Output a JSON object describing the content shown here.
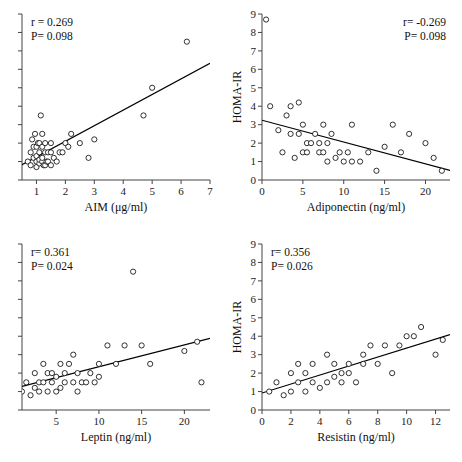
{
  "chart_data": [
    {
      "type": "scatter",
      "xlabel": "AIM (μg/ml)",
      "annotations": [
        "r = 0.269",
        "P= 0.098"
      ],
      "xlim": [
        0.5,
        7
      ],
      "ylim": [
        0,
        9
      ],
      "xticks": [
        1,
        2,
        3,
        4,
        5,
        6,
        7
      ],
      "yticks": [
        0,
        1,
        2,
        3,
        4,
        5,
        6,
        7,
        8,
        9
      ],
      "tick_labels": "x",
      "grid": false,
      "marker": "circle-open",
      "color": "#000000",
      "x": [
        0.7,
        0.8,
        0.8,
        0.85,
        0.9,
        0.9,
        0.95,
        1.0,
        1.0,
        1.0,
        1.0,
        1.05,
        1.1,
        1.1,
        1.1,
        1.1,
        1.15,
        1.2,
        1.2,
        1.2,
        1.2,
        1.25,
        1.3,
        1.3,
        1.3,
        1.35,
        1.4,
        1.4,
        1.5,
        1.5,
        1.5,
        1.6,
        1.7,
        1.8,
        1.9,
        2.0,
        2.1,
        2.2,
        2.5,
        2.8,
        3.0,
        4.7,
        5.0,
        6.2
      ],
      "values": [
        1.0,
        1.5,
        0.8,
        2.2,
        1.2,
        1.8,
        2.5,
        0.7,
        1.0,
        1.3,
        1.8,
        2.0,
        0.9,
        1.1,
        1.5,
        2.0,
        3.5,
        1.0,
        1.2,
        1.8,
        2.5,
        0.8,
        0.8,
        1.5,
        2.0,
        1.0,
        1.0,
        1.5,
        0.8,
        1.5,
        2.0,
        1.2,
        1.0,
        1.5,
        1.5,
        2.0,
        1.8,
        2.5,
        2.0,
        1.2,
        2.2,
        3.5,
        5.0,
        7.5
      ],
      "trend": {
        "slope": 0.846072,
        "intercept": 0.401708
      }
    },
    {
      "type": "scatter",
      "xlabel": "Adiponectin (ng/ml)",
      "ylabel": "HOMA-IR",
      "annotations": [
        "r= -0.269",
        "P= 0.098"
      ],
      "xlim": [
        0,
        23
      ],
      "ylim": [
        0,
        9
      ],
      "xticks": [
        0,
        5,
        10,
        15,
        20
      ],
      "yticks": [
        0,
        1,
        2,
        3,
        4,
        5,
        6,
        7,
        8,
        9
      ],
      "grid": false,
      "marker": "circle-open",
      "color": "#000000",
      "x": [
        0.5,
        1.0,
        2.0,
        2.5,
        3.0,
        3.5,
        3.5,
        4.0,
        4.5,
        4.5,
        5.0,
        5.0,
        5.5,
        5.5,
        6.0,
        6.5,
        7.0,
        7.0,
        7.5,
        7.5,
        8.0,
        8.0,
        8.5,
        9.0,
        9.5,
        10.0,
        10.5,
        11.0,
        11.0,
        12.0,
        13.0,
        14.0,
        15.0,
        16.0,
        17.0,
        18.0,
        20.0,
        21.0,
        22.0
      ],
      "values": [
        8.7,
        4.0,
        2.7,
        1.5,
        3.5,
        4.0,
        2.5,
        1.2,
        2.5,
        4.2,
        1.5,
        3.0,
        2.0,
        1.5,
        2.0,
        2.5,
        1.5,
        2.0,
        1.5,
        3.0,
        1.0,
        2.0,
        2.5,
        1.2,
        1.5,
        1.0,
        1.5,
        1.0,
        3.0,
        1.0,
        1.5,
        0.5,
        1.8,
        3.0,
        1.5,
        2.5,
        2.0,
        1.2,
        0.5
      ],
      "trend": {
        "slope": -0.118398,
        "intercept": 3.239675
      }
    },
    {
      "type": "scatter",
      "xlabel": "Leptin (ng/ml)",
      "annotations": [
        "r= 0.361",
        "P= 0.024"
      ],
      "xlim": [
        1,
        23
      ],
      "ylim": [
        0,
        9
      ],
      "xticks": [
        5,
        10,
        15,
        20
      ],
      "yticks": [
        0,
        1,
        2,
        3,
        4,
        5,
        6,
        7,
        8,
        9
      ],
      "tick_labels": "x",
      "grid": false,
      "marker": "circle-open",
      "color": "#000000",
      "x": [
        1.0,
        1.5,
        2.0,
        2.5,
        2.5,
        3.0,
        3.0,
        3.5,
        3.5,
        4.0,
        4.0,
        4.5,
        4.5,
        5.0,
        5.0,
        5.5,
        5.5,
        6.0,
        6.0,
        6.5,
        7.0,
        7.0,
        7.5,
        7.5,
        8.0,
        8.5,
        9.0,
        9.5,
        10.0,
        10.0,
        11.0,
        12.0,
        13.0,
        14.0,
        15.0,
        16.0,
        20.0,
        21.5,
        22.0
      ],
      "values": [
        1.0,
        1.5,
        0.8,
        2.0,
        1.2,
        1.5,
        1.0,
        2.5,
        1.5,
        2.0,
        1.0,
        2.0,
        1.5,
        1.0,
        1.8,
        2.5,
        1.2,
        1.5,
        2.0,
        2.5,
        1.5,
        3.0,
        1.0,
        2.0,
        1.5,
        1.5,
        2.0,
        1.5,
        2.5,
        1.8,
        3.5,
        2.5,
        3.5,
        7.5,
        3.5,
        2.5,
        3.2,
        3.7,
        1.5
      ],
      "trend": {
        "slope": 0.118513,
        "intercept": 1.160441
      }
    },
    {
      "type": "scatter",
      "xlabel": "Resistin (ng/ml)",
      "ylabel": "HOMA-IR",
      "annotations": [
        "r= 0.356",
        "P= 0.026"
      ],
      "xlim": [
        0,
        13
      ],
      "ylim": [
        0,
        9
      ],
      "xticks": [
        0,
        2,
        4,
        6,
        8,
        10,
        12
      ],
      "yticks": [
        0,
        1,
        2,
        3,
        4,
        5,
        6,
        7,
        8,
        9
      ],
      "grid": false,
      "marker": "circle-open",
      "color": "#000000",
      "x": [
        0.5,
        1.0,
        1.5,
        2.0,
        2.0,
        2.5,
        2.5,
        3.0,
        3.0,
        3.5,
        3.5,
        4.0,
        4.5,
        4.5,
        5.0,
        5.0,
        5.5,
        5.5,
        6.0,
        6.0,
        6.5,
        7.0,
        7.0,
        7.5,
        8.0,
        8.5,
        9.0,
        9.5,
        10.0,
        10.5,
        11.0,
        12.0,
        12.5
      ],
      "values": [
        1.0,
        1.5,
        0.8,
        1.0,
        2.0,
        1.5,
        2.5,
        1.0,
        2.0,
        1.5,
        2.5,
        1.2,
        1.5,
        3.0,
        1.8,
        2.5,
        1.5,
        2.0,
        2.5,
        2.0,
        1.5,
        3.0,
        2.5,
        3.5,
        2.5,
        3.5,
        2.0,
        3.5,
        4.0,
        4.0,
        4.5,
        3.0,
        3.8
      ],
      "trend": {
        "slope": 0.243211,
        "intercept": 0.920907
      }
    }
  ]
}
